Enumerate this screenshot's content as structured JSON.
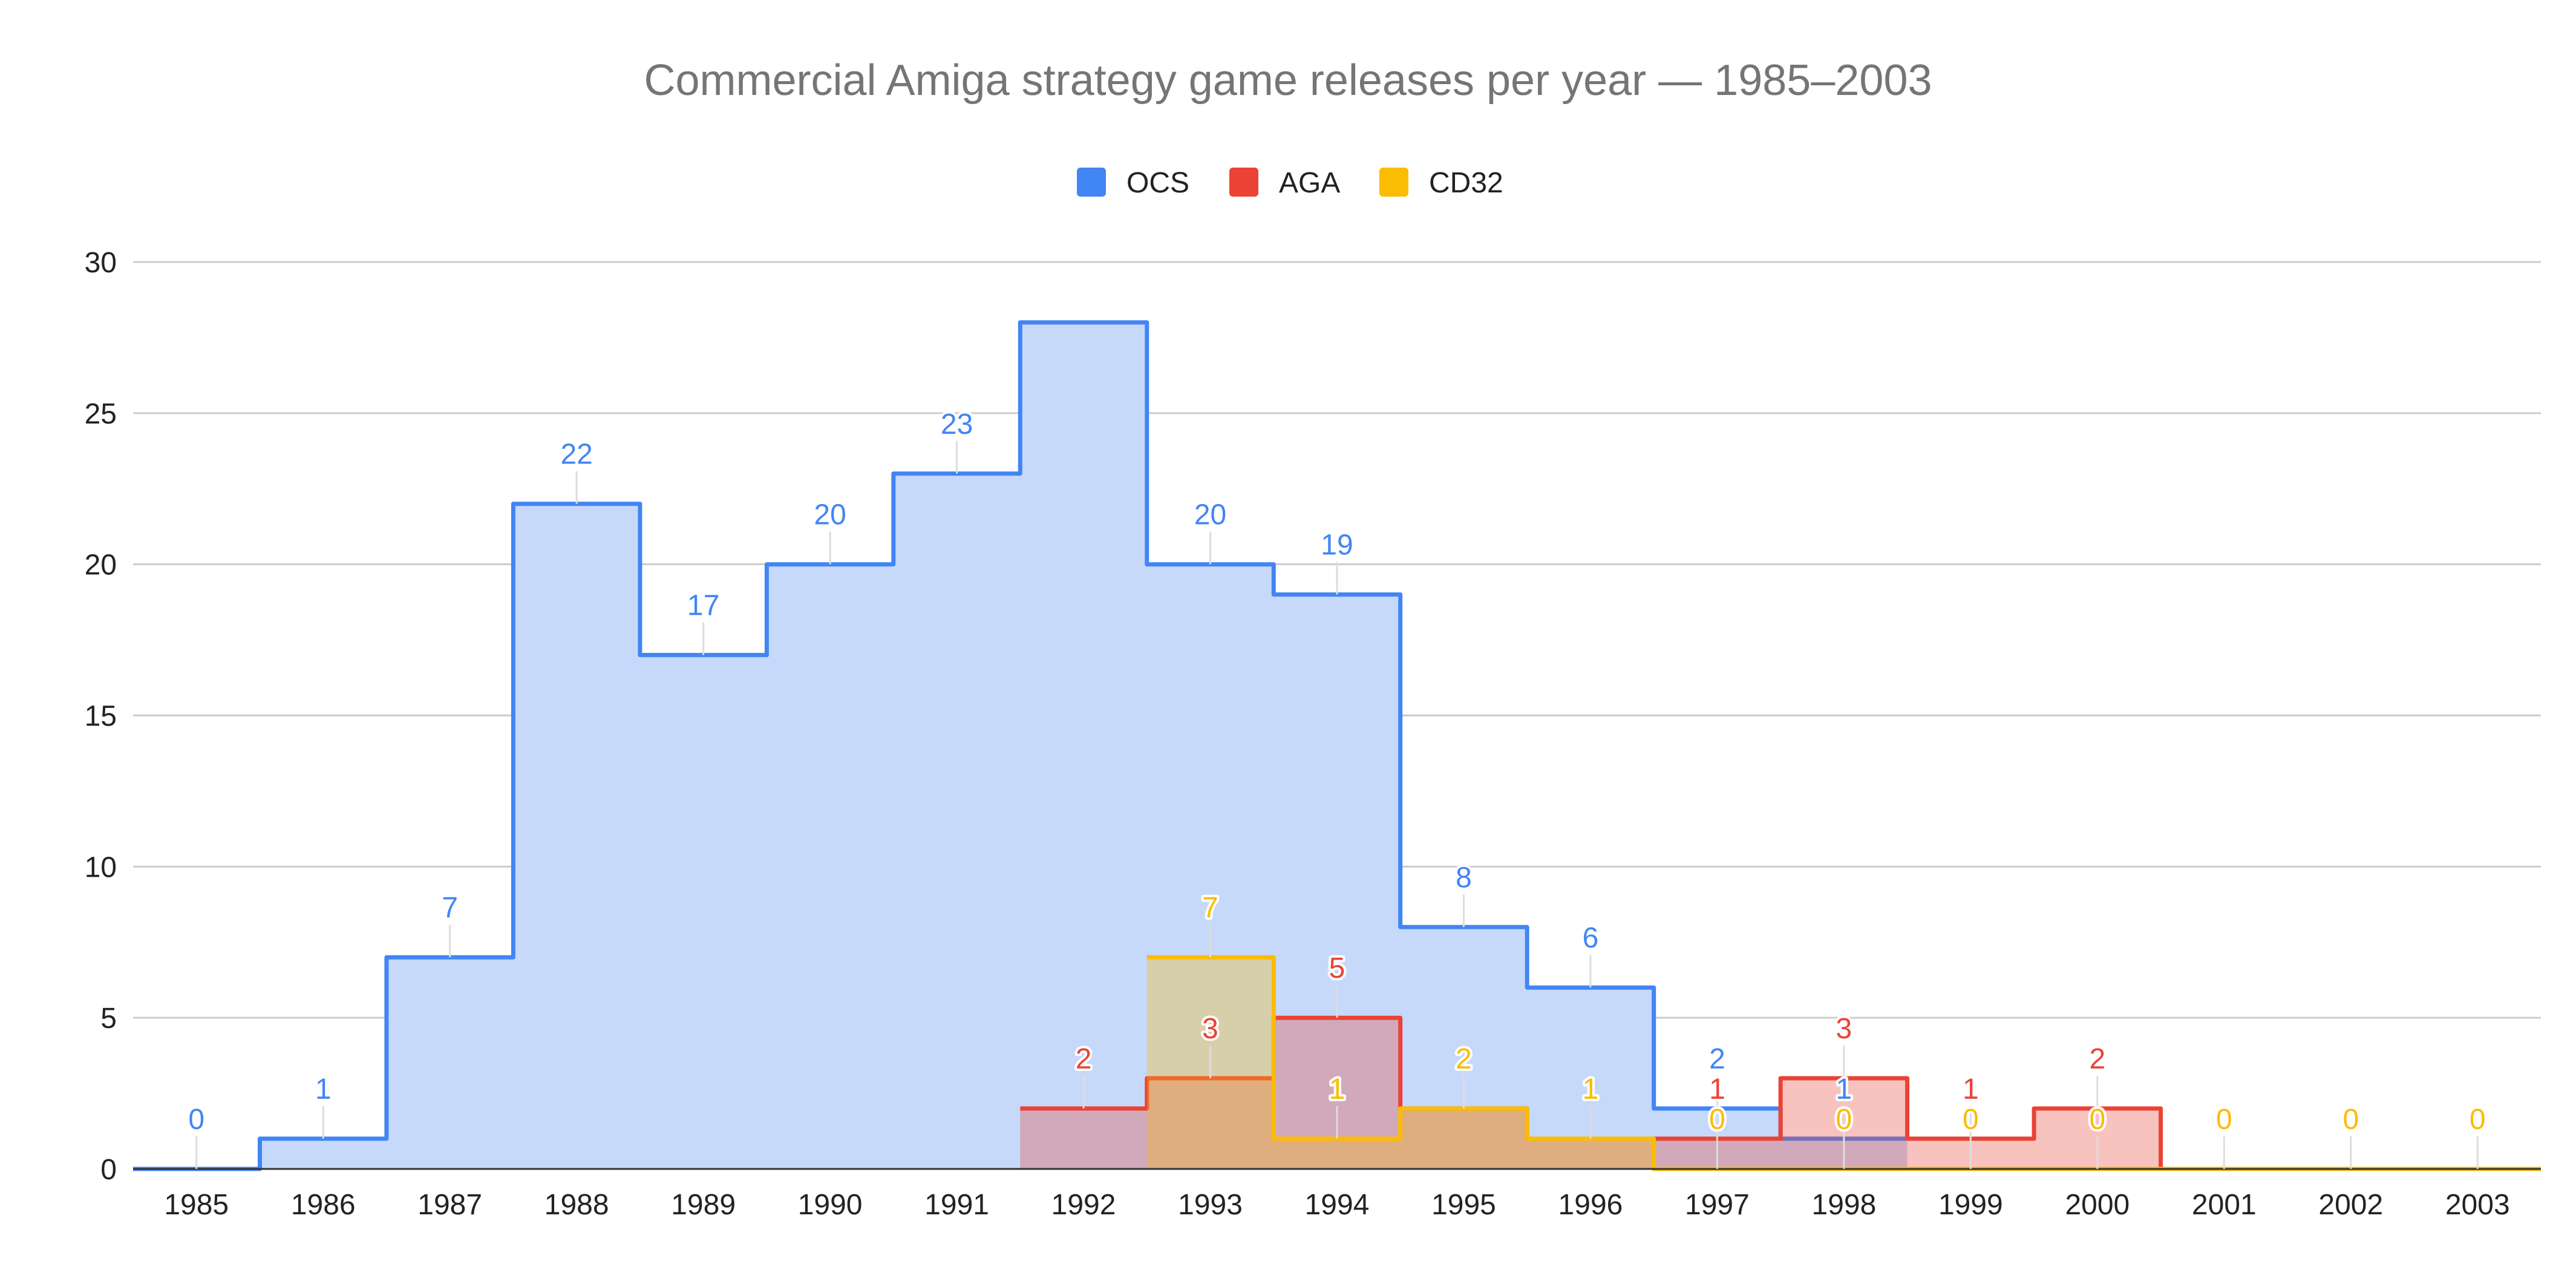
{
  "chart_data": {
    "type": "area",
    "step": true,
    "title": "Commercial Amiga strategy game releases per year — 1985–2003",
    "xlabel": "",
    "ylabel": "",
    "categories": [
      "1985",
      "1986",
      "1987",
      "1988",
      "1989",
      "1990",
      "1991",
      "1992",
      "1993",
      "1994",
      "1995",
      "1996",
      "1997",
      "1998",
      "1999",
      "2000",
      "2001",
      "2002",
      "2003"
    ],
    "series": [
      {
        "name": "OCS",
        "color": "#4285f4",
        "fill": "#c6d9fa",
        "values": [
          0,
          1,
          7,
          22,
          17,
          20,
          23,
          28,
          20,
          19,
          8,
          6,
          2,
          1,
          null,
          null,
          null,
          null,
          null
        ],
        "labels": [
          "0",
          "1",
          "7",
          "22",
          "17",
          "20",
          "23",
          "",
          "20",
          "19",
          "8",
          "6",
          "2",
          "1",
          "",
          "",
          "",
          "",
          ""
        ]
      },
      {
        "name": "AGA",
        "color": "#ea4335",
        "fill": "rgba(234,67,53,0.32)",
        "values": [
          null,
          null,
          null,
          null,
          null,
          null,
          null,
          2,
          3,
          5,
          2,
          1,
          1,
          3,
          1,
          2,
          0,
          0,
          0
        ],
        "labels": [
          "",
          "",
          "",
          "",
          "",
          "",
          "",
          "2",
          "3",
          "5",
          "",
          "",
          "1",
          "3",
          "1",
          "2",
          "",
          "",
          ""
        ]
      },
      {
        "name": "CD32",
        "color": "#fbbc04",
        "fill": "rgba(251,188,4,0.32)",
        "values": [
          null,
          null,
          null,
          null,
          null,
          null,
          null,
          null,
          7,
          1,
          2,
          1,
          0,
          0,
          0,
          0,
          0,
          0,
          0
        ],
        "labels": [
          "",
          "",
          "",
          "",
          "",
          "",
          "",
          "",
          "7",
          "1",
          "2",
          "1",
          "0",
          "0",
          "0",
          "0",
          "0",
          "0",
          "0"
        ]
      }
    ],
    "y_ticks": [
      "0",
      "5",
      "10",
      "15",
      "20",
      "25",
      "30"
    ],
    "ylim": [
      0,
      30
    ],
    "grid": true,
    "legend": "top-center"
  }
}
